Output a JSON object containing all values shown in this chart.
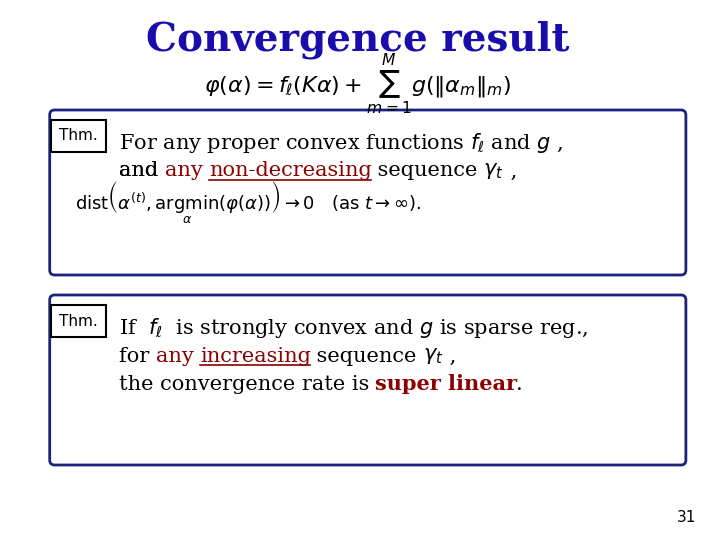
{
  "title": "Convergence result",
  "title_color": "#1a0dab",
  "title_fontsize": 28,
  "background_color": "#ffffff",
  "slide_number": "31",
  "formula_top": "$\\varphi(\\alpha) = f_\\ell(K\\alpha) + \\sum_{m=1}^{M} g(\\|\\alpha_m\\|_m)$",
  "box1_thm_label": "Thm.",
  "box1_line1_parts": [
    {
      "text": "For any proper convex functions ",
      "color": "#000000",
      "style": "normal"
    },
    {
      "text": "$f_\\ell$",
      "color": "#000000",
      "style": "italic"
    },
    {
      "text": " and ",
      "color": "#000000",
      "style": "normal"
    },
    {
      "text": "$g$",
      "color": "#000000",
      "style": "italic"
    },
    {
      "text": " ,",
      "color": "#000000",
      "style": "normal"
    }
  ],
  "box1_line2_parts": [
    {
      "text": "and ",
      "color": "#000000",
      "style": "normal"
    },
    {
      "text": "any",
      "color": "#8b0000",
      "style": "normal"
    },
    {
      "text": " ",
      "color": "#000000",
      "style": "normal"
    },
    {
      "text": "non-decreasing",
      "color": "#8b0000",
      "style": "underline"
    },
    {
      "text": " sequence ",
      "color": "#000000",
      "style": "normal"
    },
    {
      "text": "$\\gamma_t$",
      "color": "#000000",
      "style": "normal"
    },
    {
      "text": " ,",
      "color": "#000000",
      "style": "normal"
    }
  ],
  "box1_formula": "$\\mathrm{dist}\\left(\\alpha^{(t)}, \\underset{\\alpha}{\\mathrm{argmin}}(\\varphi(\\alpha))\\right) \\to 0 \\quad (\\mathrm{as}\\; t \\to \\infty).$",
  "box2_thm_label": "Thm.",
  "box2_line1_parts": [
    {
      "text": "If  ",
      "color": "#000000",
      "style": "normal"
    },
    {
      "text": "$f_\\ell$",
      "color": "#000000",
      "style": "italic"
    },
    {
      "text": "  is strongly convex and ",
      "color": "#000000",
      "style": "normal"
    },
    {
      "text": "$g$",
      "color": "#000000",
      "style": "italic"
    },
    {
      "text": " is sparse reg.,",
      "color": "#000000",
      "style": "normal"
    }
  ],
  "box2_line2_parts": [
    {
      "text": "for ",
      "color": "#000000",
      "style": "normal"
    },
    {
      "text": "any",
      "color": "#8b0000",
      "style": "normal"
    },
    {
      "text": " ",
      "color": "#000000",
      "style": "normal"
    },
    {
      "text": "increasing",
      "color": "#8b0000",
      "style": "underline"
    },
    {
      "text": " sequence ",
      "color": "#000000",
      "style": "normal"
    },
    {
      "text": "$\\gamma_t$",
      "color": "#000000",
      "style": "normal"
    },
    {
      "text": " ,",
      "color": "#000000",
      "style": "normal"
    }
  ],
  "box2_line3_parts": [
    {
      "text": "the convergence rate is ",
      "color": "#000000",
      "style": "normal"
    },
    {
      "text": "super linear",
      "color": "#8b0000",
      "style": "bold"
    },
    {
      "text": ".",
      "color": "#000000",
      "style": "normal"
    }
  ],
  "box_border_color": "#1a237e",
  "thm_box_color": "#000000",
  "text_fontsize": 15,
  "formula_fontsize": 14
}
